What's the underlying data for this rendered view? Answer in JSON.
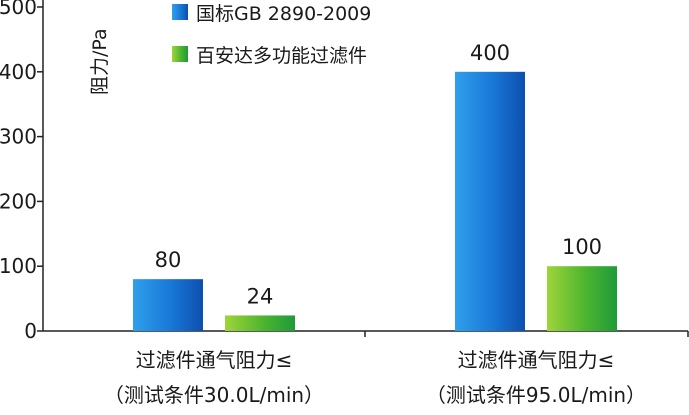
{
  "chart_data": {
    "type": "bar",
    "ylabel": "阻力/Pa",
    "ylim": [
      0,
      500
    ],
    "yticks": [
      0,
      100,
      200,
      300,
      400,
      500
    ],
    "grid": false,
    "legend_position": "top-left",
    "categories": [
      [
        "过滤件通气阻力≤",
        "（测试条件30.0L/min）"
      ],
      [
        "过滤件通气阻力≤",
        "（测试条件95.0L/min）"
      ]
    ],
    "series": [
      {
        "name": "国标GB 2890-2009",
        "values": [
          80,
          400
        ],
        "color": "#1f6fd0"
      },
      {
        "name": "百安达多功能过滤件",
        "values": [
          24,
          100
        ],
        "color": "#3fae2a"
      }
    ],
    "data_labels": [
      [
        "80",
        "400"
      ],
      [
        "24",
        "100"
      ]
    ]
  }
}
